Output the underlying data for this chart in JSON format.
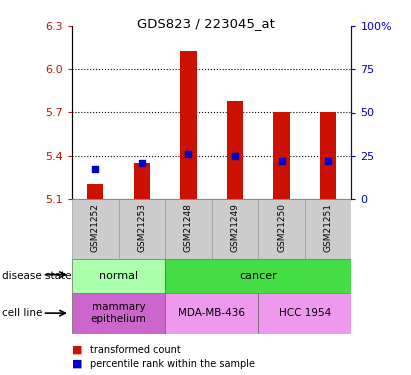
{
  "title": "GDS823 / 223045_at",
  "samples": [
    "GSM21252",
    "GSM21253",
    "GSM21248",
    "GSM21249",
    "GSM21250",
    "GSM21251"
  ],
  "transformed_count": [
    5.2,
    5.35,
    6.13,
    5.78,
    5.7,
    5.7
  ],
  "percentile_rank": [
    17,
    21,
    26,
    25,
    22,
    22
  ],
  "ylim_left": [
    5.1,
    6.3
  ],
  "ylim_right": [
    0,
    100
  ],
  "left_yticks": [
    5.1,
    5.4,
    5.7,
    6.0,
    6.3
  ],
  "right_yticks": [
    0,
    25,
    50,
    75,
    100
  ],
  "right_ytick_labels": [
    "0",
    "25",
    "50",
    "75",
    "100%"
  ],
  "disease_state": [
    {
      "label": "normal",
      "span": [
        0,
        2
      ],
      "color": "#AAFFAA"
    },
    {
      "label": "cancer",
      "span": [
        2,
        6
      ],
      "color": "#44DD44"
    }
  ],
  "cell_line": [
    {
      "label": "mammary\nepithelium",
      "span": [
        0,
        2
      ],
      "color": "#CC66CC"
    },
    {
      "label": "MDA-MB-436",
      "span": [
        2,
        4
      ],
      "color": "#EE99EE"
    },
    {
      "label": "HCC 1954",
      "span": [
        4,
        6
      ],
      "color": "#EE99EE"
    }
  ],
  "bar_color": "#CC1100",
  "dot_color": "#0000CC",
  "axis_color_left": "#CC1100",
  "axis_color_right": "#0000CC",
  "bar_width": 0.35,
  "baseline": 5.1
}
